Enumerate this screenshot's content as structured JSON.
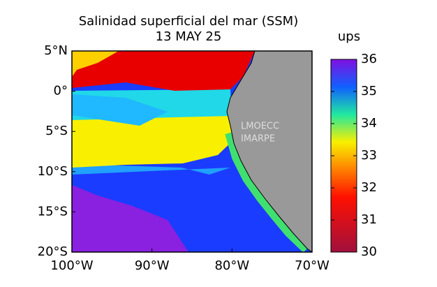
{
  "chart_data": {
    "type": "map",
    "title": [
      "Salinidad superficial del mar (SSM)",
      "13 MAY 25"
    ],
    "xlim": [
      -100,
      -70
    ],
    "xticks": [
      {
        "value": -100,
        "label": "100°W"
      },
      {
        "value": -90,
        "label": "90°W"
      },
      {
        "value": -80,
        "label": "80°W"
      },
      {
        "value": -70,
        "label": "70°W"
      }
    ],
    "ylim": [
      -20,
      5
    ],
    "yticks": [
      {
        "value": 5,
        "label": "5°N"
      },
      {
        "value": 0,
        "label": "0°"
      },
      {
        "value": -5,
        "label": "5°S"
      },
      {
        "value": -10,
        "label": "10°S"
      },
      {
        "value": -15,
        "label": "15°S"
      },
      {
        "value": -20,
        "label": "20°S"
      }
    ],
    "watermark": [
      "LMOECC",
      "IMARPE"
    ],
    "colorbar": {
      "label": "ups",
      "lim": [
        30,
        36
      ],
      "ticks": [
        30,
        31,
        32,
        33,
        34,
        35,
        36
      ],
      "colors": [
        "#a0103c",
        "#d01020",
        "#ff1000",
        "#ff8000",
        "#f8f000",
        "#20e8a0",
        "#1060ff",
        "#8010e0"
      ]
    }
  }
}
